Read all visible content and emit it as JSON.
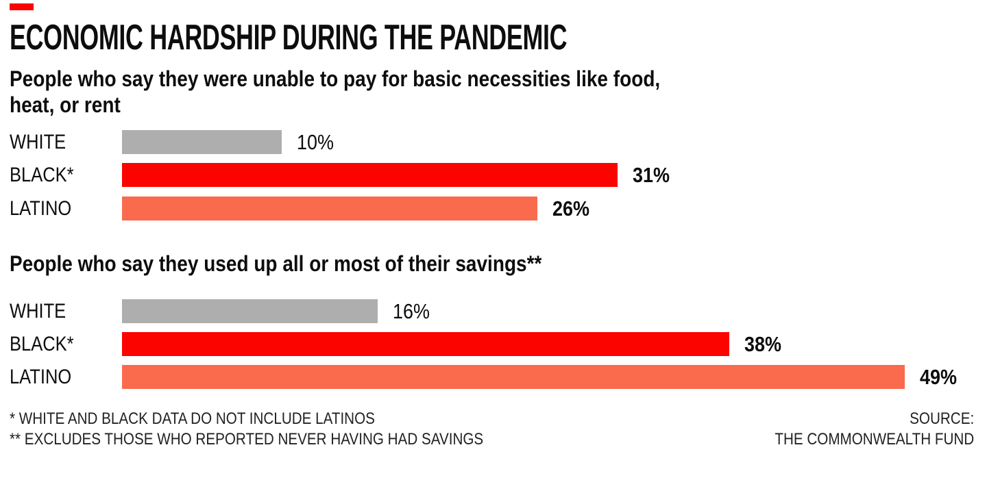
{
  "accent_color": "#fb0400",
  "gray_color": "#aeaeae",
  "salmon_color": "#fa6a4d",
  "header": {
    "title": "ECONOMIC HARDSHIP DURING THE PANDEMIC"
  },
  "chart_data": [
    {
      "type": "bar",
      "title": "People who say they were unable to pay for basic necessities like food, heat, or rent",
      "title_lines": [
        "People who say they were unable to pay for basic necessities like food,",
        "heat, or rent"
      ],
      "categories": [
        "WHITE",
        "BLACK*",
        "LATINO"
      ],
      "values": [
        10,
        31,
        26
      ],
      "value_labels": [
        "10%",
        "31%",
        "26%"
      ],
      "value_bold": [
        false,
        true,
        true
      ],
      "colors": [
        "#aeaeae",
        "#fb0400",
        "#fa6a4d"
      ],
      "xlabel": "",
      "ylabel": "",
      "xlim": [
        0,
        52
      ],
      "unit": "percent",
      "orientation": "horizontal",
      "grid": false,
      "legend": "none"
    },
    {
      "type": "bar",
      "title": "People who say they used up all or most of their savings**",
      "title_lines": [
        "People who say they used up all or most of their savings**"
      ],
      "categories": [
        "WHITE",
        "BLACK*",
        "LATINO"
      ],
      "values": [
        16,
        38,
        49
      ],
      "value_labels": [
        "16%",
        "38%",
        "49%"
      ],
      "value_bold": [
        false,
        true,
        true
      ],
      "colors": [
        "#aeaeae",
        "#fb0400",
        "#fa6a4d"
      ],
      "xlabel": "",
      "ylabel": "",
      "xlim": [
        0,
        52
      ],
      "unit": "percent",
      "orientation": "horizontal",
      "grid": false,
      "legend": "none"
    }
  ],
  "footnotes": [
    "* WHITE AND BLACK DATA DO NOT INCLUDE LATINOS",
    "** EXCLUDES THOSE WHO REPORTED NEVER HAVING HAD SAVINGS"
  ],
  "source": {
    "lines": [
      "SOURCE:",
      "THE COMMONWEALTH FUND"
    ]
  }
}
